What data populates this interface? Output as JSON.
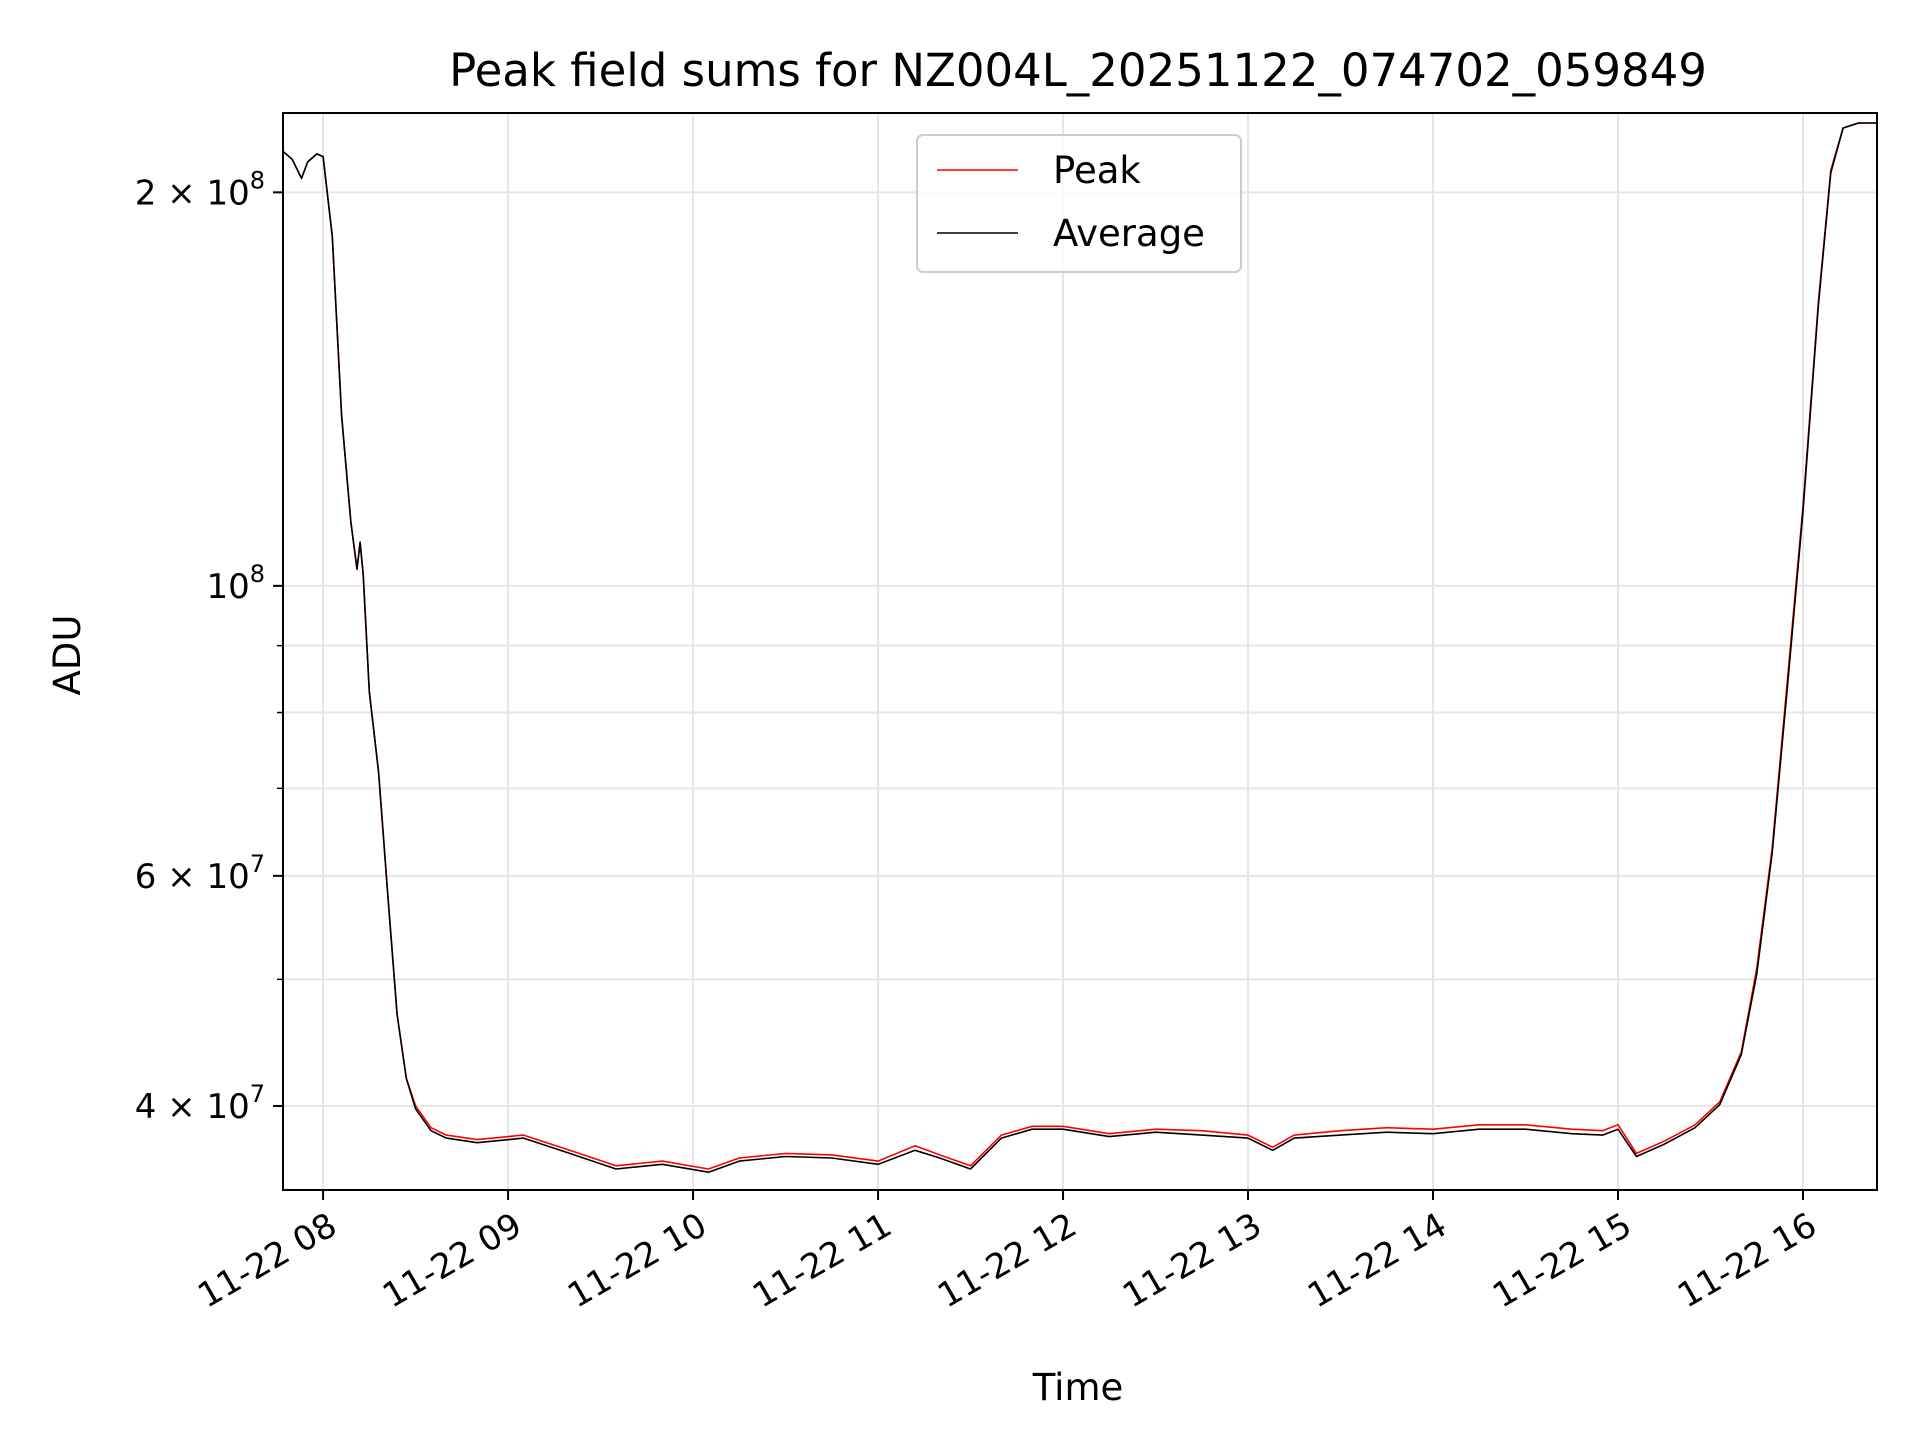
{
  "chart_data": {
    "type": "line",
    "title": "Peak field sums for NZ004L_20251122_074702_059849",
    "xlabel": "Time",
    "ylabel": "ADU",
    "yscale": "log",
    "ylim": [
      34500000,
      230000000
    ],
    "xlim": [
      "2025-11-22 07:47",
      "2025-11-22 16:24"
    ],
    "grid": true,
    "legend_location": "upper center",
    "x_ticks": [
      {
        "t": "2025-11-22 08:00",
        "label": "11-22 08"
      },
      {
        "t": "2025-11-22 09:00",
        "label": "11-22 09"
      },
      {
        "t": "2025-11-22 10:00",
        "label": "11-22 10"
      },
      {
        "t": "2025-11-22 11:00",
        "label": "11-22 11"
      },
      {
        "t": "2025-11-22 12:00",
        "label": "11-22 12"
      },
      {
        "t": "2025-11-22 13:00",
        "label": "11-22 13"
      },
      {
        "t": "2025-11-22 14:00",
        "label": "11-22 14"
      },
      {
        "t": "2025-11-22 15:00",
        "label": "11-22 15"
      },
      {
        "t": "2025-11-22 16:00",
        "label": "11-22 16"
      }
    ],
    "y_ticks": [
      {
        "value": 200000000,
        "label": "2 × 10^8",
        "mant": "2 × 10",
        "exp": "8"
      },
      {
        "value": 100000000,
        "label": "10^8",
        "mant": "10",
        "exp": "8"
      },
      {
        "value": 60000000,
        "label": "6 × 10^7",
        "mant": "6 × 10",
        "exp": "7"
      },
      {
        "value": 40000000,
        "label": "4 × 10^7",
        "mant": "4 × 10",
        "exp": "7"
      }
    ],
    "y_minor_ticks": [
      300000000,
      90000000,
      80000000,
      70000000,
      50000000
    ],
    "series": [
      {
        "name": "Peak",
        "color": "#ff0000",
        "points": [
          [
            "2025-11-22 07:47",
            215000000
          ],
          [
            "2025-11-22 07:50",
            212000000
          ],
          [
            "2025-11-22 07:53",
            205000000
          ],
          [
            "2025-11-22 07:55",
            211000000
          ],
          [
            "2025-11-22 07:58",
            214000000
          ],
          [
            "2025-11-22 08:00",
            213000000
          ],
          [
            "2025-11-22 08:03",
            185000000
          ],
          [
            "2025-11-22 08:06",
            135000000
          ],
          [
            "2025-11-22 08:09",
            112000000
          ],
          [
            "2025-11-22 08:11",
            103000000
          ],
          [
            "2025-11-22 08:12",
            108000000
          ],
          [
            "2025-11-22 08:13",
            102000000
          ],
          [
            "2025-11-22 08:15",
            83000000
          ],
          [
            "2025-11-22 08:18",
            72000000
          ],
          [
            "2025-11-22 08:21",
            58000000
          ],
          [
            "2025-11-22 08:24",
            47000000
          ],
          [
            "2025-11-22 08:27",
            42000000
          ],
          [
            "2025-11-22 08:30",
            40000000
          ],
          [
            "2025-11-22 08:35",
            38500000
          ],
          [
            "2025-11-22 08:40",
            38000000
          ],
          [
            "2025-11-22 08:50",
            37700000
          ],
          [
            "2025-11-22 09:05",
            38000000
          ],
          [
            "2025-11-22 09:20",
            37000000
          ],
          [
            "2025-11-22 09:35",
            36000000
          ],
          [
            "2025-11-22 09:50",
            36300000
          ],
          [
            "2025-11-22 10:05",
            35800000
          ],
          [
            "2025-11-22 10:15",
            36500000
          ],
          [
            "2025-11-22 10:30",
            36800000
          ],
          [
            "2025-11-22 10:45",
            36700000
          ],
          [
            "2025-11-22 11:00",
            36300000
          ],
          [
            "2025-11-22 11:12",
            37300000
          ],
          [
            "2025-11-22 11:20",
            36700000
          ],
          [
            "2025-11-22 11:30",
            36000000
          ],
          [
            "2025-11-22 11:40",
            38000000
          ],
          [
            "2025-11-22 11:50",
            38600000
          ],
          [
            "2025-11-22 12:00",
            38600000
          ],
          [
            "2025-11-22 12:15",
            38100000
          ],
          [
            "2025-11-22 12:30",
            38400000
          ],
          [
            "2025-11-22 12:45",
            38300000
          ],
          [
            "2025-11-22 13:00",
            38000000
          ],
          [
            "2025-11-22 13:08",
            37200000
          ],
          [
            "2025-11-22 13:15",
            38000000
          ],
          [
            "2025-11-22 13:30",
            38300000
          ],
          [
            "2025-11-22 13:45",
            38500000
          ],
          [
            "2025-11-22 14:00",
            38400000
          ],
          [
            "2025-11-22 14:15",
            38700000
          ],
          [
            "2025-11-22 14:30",
            38700000
          ],
          [
            "2025-11-22 14:45",
            38400000
          ],
          [
            "2025-11-22 14:55",
            38300000
          ],
          [
            "2025-11-22 15:00",
            38700000
          ],
          [
            "2025-11-22 15:06",
            36800000
          ],
          [
            "2025-11-22 15:15",
            37600000
          ],
          [
            "2025-11-22 15:25",
            38700000
          ],
          [
            "2025-11-22 15:33",
            40300000
          ],
          [
            "2025-11-22 15:40",
            44000000
          ],
          [
            "2025-11-22 15:45",
            51000000
          ],
          [
            "2025-11-22 15:50",
            63000000
          ],
          [
            "2025-11-22 15:55",
            85000000
          ],
          [
            "2025-11-22 16:00",
            115000000
          ],
          [
            "2025-11-22 16:05",
            165000000
          ],
          [
            "2025-11-22 16:09",
            208000000
          ],
          [
            "2025-11-22 16:13",
            224000000
          ],
          [
            "2025-11-22 16:18",
            226000000
          ],
          [
            "2025-11-22 16:24",
            226000000
          ]
        ]
      },
      {
        "name": "Average",
        "color": "#000000",
        "points": [
          [
            "2025-11-22 07:47",
            215000000
          ],
          [
            "2025-11-22 07:50",
            212000000
          ],
          [
            "2025-11-22 07:53",
            205000000
          ],
          [
            "2025-11-22 07:55",
            211000000
          ],
          [
            "2025-11-22 07:58",
            214000000
          ],
          [
            "2025-11-22 08:00",
            213000000
          ],
          [
            "2025-11-22 08:03",
            185000000
          ],
          [
            "2025-11-22 08:06",
            135000000
          ],
          [
            "2025-11-22 08:09",
            112000000
          ],
          [
            "2025-11-22 08:11",
            103000000
          ],
          [
            "2025-11-22 08:12",
            108000000
          ],
          [
            "2025-11-22 08:13",
            102000000
          ],
          [
            "2025-11-22 08:15",
            83000000
          ],
          [
            "2025-11-22 08:18",
            72000000
          ],
          [
            "2025-11-22 08:21",
            58000000
          ],
          [
            "2025-11-22 08:24",
            47000000
          ],
          [
            "2025-11-22 08:27",
            42000000
          ],
          [
            "2025-11-22 08:30",
            39800000
          ],
          [
            "2025-11-22 08:35",
            38300000
          ],
          [
            "2025-11-22 08:40",
            37800000
          ],
          [
            "2025-11-22 08:50",
            37500000
          ],
          [
            "2025-11-22 09:05",
            37800000
          ],
          [
            "2025-11-22 09:20",
            36800000
          ],
          [
            "2025-11-22 09:35",
            35800000
          ],
          [
            "2025-11-22 09:50",
            36100000
          ],
          [
            "2025-11-22 10:05",
            35600000
          ],
          [
            "2025-11-22 10:15",
            36300000
          ],
          [
            "2025-11-22 10:30",
            36600000
          ],
          [
            "2025-11-22 10:45",
            36500000
          ],
          [
            "2025-11-22 11:00",
            36100000
          ],
          [
            "2025-11-22 11:12",
            37000000
          ],
          [
            "2025-11-22 11:20",
            36500000
          ],
          [
            "2025-11-22 11:30",
            35800000
          ],
          [
            "2025-11-22 11:40",
            37800000
          ],
          [
            "2025-11-22 11:50",
            38400000
          ],
          [
            "2025-11-22 12:00",
            38400000
          ],
          [
            "2025-11-22 12:15",
            37900000
          ],
          [
            "2025-11-22 12:30",
            38200000
          ],
          [
            "2025-11-22 12:45",
            38000000
          ],
          [
            "2025-11-22 13:00",
            37800000
          ],
          [
            "2025-11-22 13:08",
            37000000
          ],
          [
            "2025-11-22 13:15",
            37800000
          ],
          [
            "2025-11-22 13:30",
            38000000
          ],
          [
            "2025-11-22 13:45",
            38200000
          ],
          [
            "2025-11-22 14:00",
            38100000
          ],
          [
            "2025-11-22 14:15",
            38400000
          ],
          [
            "2025-11-22 14:30",
            38400000
          ],
          [
            "2025-11-22 14:45",
            38100000
          ],
          [
            "2025-11-22 14:55",
            38000000
          ],
          [
            "2025-11-22 15:00",
            38400000
          ],
          [
            "2025-11-22 15:06",
            36600000
          ],
          [
            "2025-11-22 15:15",
            37400000
          ],
          [
            "2025-11-22 15:25",
            38500000
          ],
          [
            "2025-11-22 15:33",
            40100000
          ],
          [
            "2025-11-22 15:40",
            43800000
          ],
          [
            "2025-11-22 15:45",
            50500000
          ],
          [
            "2025-11-22 15:50",
            62500000
          ],
          [
            "2025-11-22 15:55",
            84000000
          ],
          [
            "2025-11-22 16:00",
            114000000
          ],
          [
            "2025-11-22 16:05",
            164000000
          ],
          [
            "2025-11-22 16:09",
            207000000
          ],
          [
            "2025-11-22 16:13",
            224000000
          ],
          [
            "2025-11-22 16:18",
            226000000
          ],
          [
            "2025-11-22 16:24",
            226000000
          ]
        ]
      }
    ]
  }
}
